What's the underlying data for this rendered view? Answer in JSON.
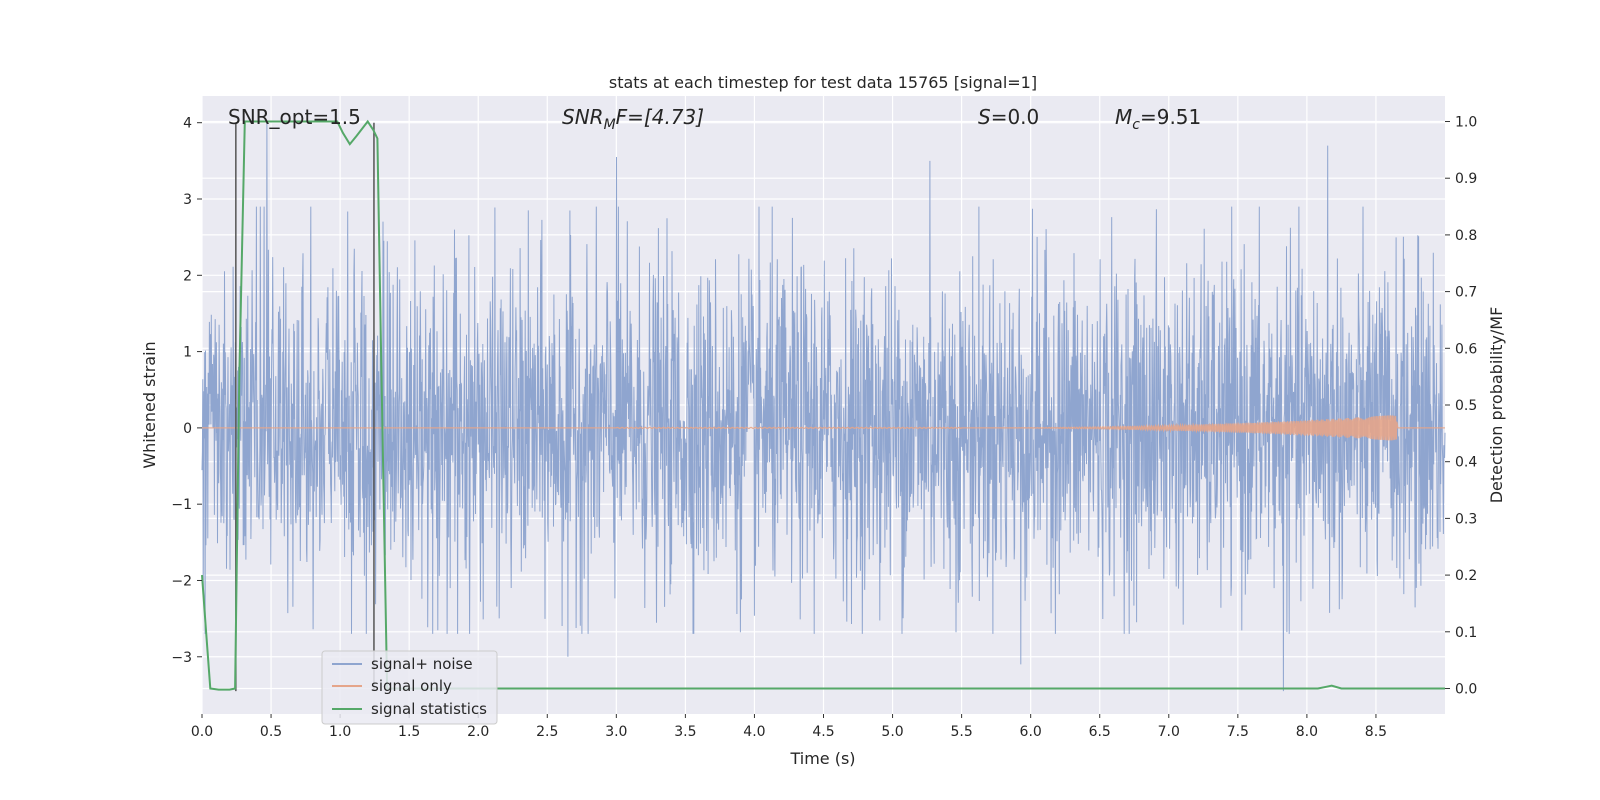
{
  "chart_data": {
    "type": "line",
    "title": "stats at each timestep for test data 15765 [signal=1]",
    "xlabel": "Time (s)",
    "ylabel_left": "Whitened strain",
    "ylabel_right": "Detection probability/MF",
    "xlim": [
      0,
      9.0
    ],
    "ylim_left": [
      -3.75,
      4.35
    ],
    "ylim_right": [
      -0.045,
      1.045
    ],
    "x_ticks": [
      "0.0",
      "0.5",
      "1.0",
      "1.5",
      "2.0",
      "2.5",
      "3.0",
      "3.5",
      "4.0",
      "4.5",
      "5.0",
      "5.5",
      "6.0",
      "6.5",
      "7.0",
      "7.5",
      "8.0",
      "8.5"
    ],
    "y_ticks_left": [
      "−3",
      "−2",
      "−1",
      "0",
      "1",
      "2",
      "3",
      "4"
    ],
    "y_ticks_right": [
      "0.0",
      "0.1",
      "0.2",
      "0.3",
      "0.4",
      "0.5",
      "0.6",
      "0.7",
      "0.8",
      "0.9",
      "1.0"
    ],
    "grid": true,
    "legend_position": "lower-left",
    "annotations": {
      "snr_opt": "SNR_opt=1.5",
      "snr_mf_sym": "SNR",
      "snr_mf_sub": "M",
      "snr_mf_rest": "F=[4.73]",
      "s_sym": "S",
      "s_rest": "=0.0",
      "mc_sym": "M",
      "mc_sub": "c",
      "mc_rest": "=9.51"
    },
    "series": [
      {
        "name": "signal+ noise",
        "color": "#8fa5cf",
        "axis": "left",
        "description_values": {
          "x_range": [
            0,
            9.0
          ],
          "typical_envelope": [
            -2.0,
            2.0
          ],
          "extremes": [
            {
              "x": 0.47,
              "y": 4.0
            },
            {
              "x": 3.0,
              "y": 3.55
            },
            {
              "x": 8.15,
              "y": 3.7
            },
            {
              "x": 5.27,
              "y": 3.5
            },
            {
              "x": 7.83,
              "y": -3.45
            },
            {
              "x": 5.93,
              "y": -3.1
            },
            {
              "x": 2.65,
              "y": -3.0
            }
          ]
        }
      },
      {
        "name": "signal only",
        "color": "#e5a58a",
        "axis": "left",
        "description_values": {
          "baseline": 0,
          "chirp_start": 5.5,
          "chirp_end": 8.65,
          "peak_amplitude": 0.17
        }
      },
      {
        "name": "signal statistics",
        "color": "#55a868",
        "axis": "right",
        "x": [
          0,
          0.03,
          0.06,
          0.12,
          0.2,
          0.24,
          0.27,
          0.31,
          0.5,
          0.7,
          0.9,
          0.98,
          1.02,
          1.07,
          1.12,
          1.2,
          1.24,
          1.27,
          1.3,
          1.34,
          1.5,
          2,
          3,
          4,
          5,
          6,
          7,
          7.5,
          8.0,
          8.08,
          8.14,
          8.18,
          8.25,
          8.5,
          9.0
        ],
        "values": [
          0.2,
          0.1,
          0.0,
          -0.002,
          -0.002,
          0.0,
          0.55,
          1.0,
          1.0,
          1.0,
          1.0,
          1.0,
          0.98,
          0.96,
          0.975,
          1.0,
          0.985,
          0.97,
          0.55,
          0.0,
          0.0,
          0.0,
          0.0,
          0.0,
          0.0,
          0.0,
          0.0,
          0.0,
          0.0,
          0.0,
          0.003,
          0.005,
          0.0,
          0.0,
          0.0
        ]
      }
    ],
    "markers": [
      {
        "x": 0.245,
        "color": "#555555"
      },
      {
        "x": 1.245,
        "color": "#555555"
      }
    ]
  }
}
